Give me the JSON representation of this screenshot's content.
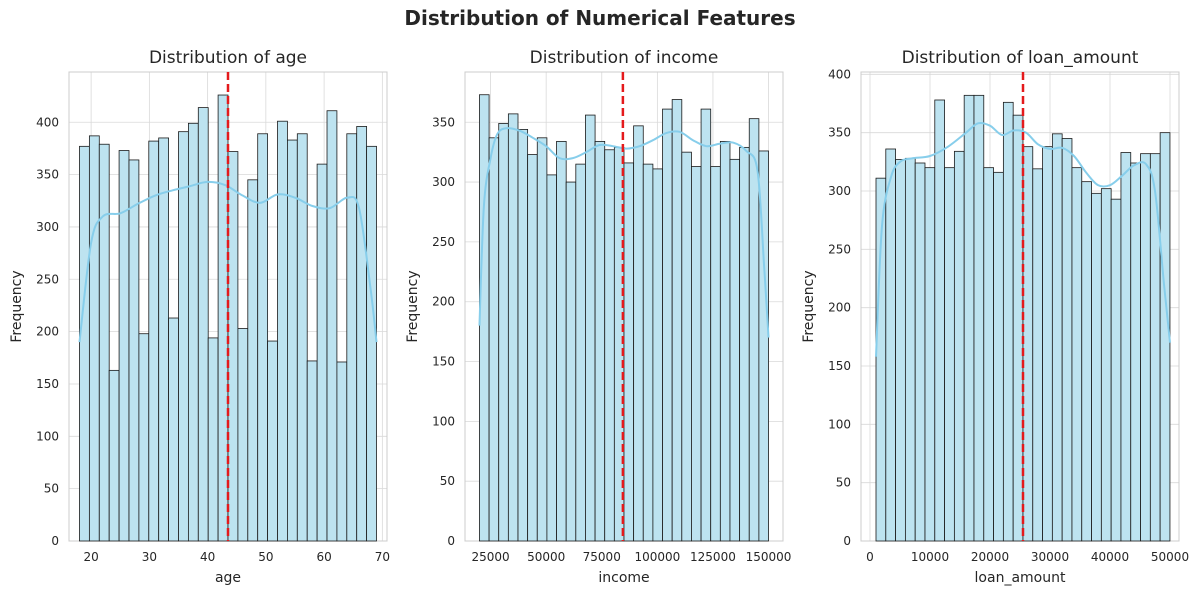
{
  "figure": {
    "title": "Distribution of Numerical Features",
    "colors": {
      "bar_fill": "#bde3f0",
      "bar_edge": "#1a1a1a",
      "kde": "#87ceeb",
      "mean_line": "#e41a1c",
      "grid": "#d9d9d9",
      "axes_edge": "#cccccc",
      "text": "#262626"
    }
  },
  "chart_data": [
    {
      "type": "bar",
      "title": "Distribution of age",
      "xlabel": "age",
      "ylabel": "Frequency",
      "xlim": [
        16.2,
        70.8
      ],
      "ylim": [
        0,
        448
      ],
      "xticks": [
        20,
        30,
        40,
        50,
        60,
        70
      ],
      "xtick_labels": [
        "20",
        "30",
        "40",
        "50",
        "60",
        "70"
      ],
      "yticks": [
        0,
        50,
        100,
        150,
        200,
        250,
        300,
        350,
        400
      ],
      "ytick_labels": [
        "0",
        "50",
        "100",
        "150",
        "200",
        "250",
        "300",
        "350",
        "400"
      ],
      "bin_start": 18,
      "bin_width": 1.7,
      "values": [
        377,
        387,
        379,
        163,
        373,
        364,
        198,
        382,
        385,
        213,
        391,
        399,
        414,
        194,
        426,
        372,
        203,
        345,
        389,
        191,
        401,
        383,
        389,
        172,
        360,
        411,
        171,
        389,
        396,
        377
      ],
      "kde": {
        "x": [
          18,
          20,
          22,
          25,
          28,
          31,
          34,
          37,
          40,
          43,
          46,
          49,
          52,
          55,
          58,
          61,
          64,
          66,
          68,
          69
        ],
        "y": [
          190,
          285,
          310,
          313,
          322,
          330,
          335,
          339,
          343,
          340,
          330,
          323,
          331,
          328,
          320,
          318,
          328,
          318,
          240,
          190
        ]
      },
      "mean_line": 43.5,
      "grid": true,
      "legend": "none"
    },
    {
      "type": "bar",
      "title": "Distribution of income",
      "xlabel": "income",
      "ylabel": "Frequency",
      "xlim": [
        13500,
        156500
      ],
      "ylim": [
        0,
        392
      ],
      "xticks": [
        25000,
        50000,
        75000,
        100000,
        125000,
        150000
      ],
      "xtick_labels": [
        "25000",
        "50000",
        "75000",
        "100000",
        "125000",
        "150000"
      ],
      "yticks": [
        0,
        50,
        100,
        150,
        200,
        250,
        300,
        350
      ],
      "ytick_labels": [
        "0",
        "50",
        "100",
        "150",
        "200",
        "250",
        "300",
        "350"
      ],
      "bin_start": 20000,
      "bin_width": 4333,
      "values": [
        373,
        337,
        349,
        357,
        344,
        323,
        337,
        306,
        334,
        300,
        315,
        356,
        334,
        327,
        329,
        316,
        347,
        315,
        311,
        361,
        369,
        325,
        313,
        361,
        313,
        334,
        319,
        329,
        353,
        326
      ],
      "kde": {
        "x": [
          20000,
          22000,
          25000,
          28000,
          32000,
          38000,
          44000,
          50000,
          56000,
          62000,
          68000,
          74000,
          80000,
          86000,
          92000,
          98000,
          104000,
          110000,
          116000,
          122000,
          128000,
          134000,
          140000,
          145000,
          148000,
          150000
        ],
        "y": [
          180,
          280,
          320,
          340,
          345,
          343,
          337,
          330,
          320,
          320,
          325,
          331,
          330,
          328,
          330,
          335,
          341,
          342,
          335,
          330,
          332,
          333,
          326,
          310,
          230,
          170
        ]
      },
      "mean_line": 84500,
      "grid": true,
      "legend": "none"
    },
    {
      "type": "bar",
      "title": "Distribution of loan_amount",
      "xlabel": "loan_amount",
      "ylabel": "Frequency",
      "xlim": [
        -1500,
        51500
      ],
      "ylim": [
        0,
        402
      ],
      "xticks": [
        0,
        10000,
        20000,
        30000,
        40000,
        50000
      ],
      "xtick_labels": [
        "0",
        "10000",
        "20000",
        "30000",
        "40000",
        "50000"
      ],
      "yticks": [
        0,
        50,
        100,
        150,
        200,
        250,
        300,
        350,
        400
      ],
      "ytick_labels": [
        "0",
        "50",
        "100",
        "150",
        "200",
        "250",
        "300",
        "350",
        "400"
      ],
      "bin_start": 1000,
      "bin_width": 1633,
      "values": [
        311,
        336,
        327,
        328,
        324,
        320,
        378,
        320,
        334,
        382,
        382,
        320,
        316,
        376,
        365,
        338,
        319,
        338,
        349,
        345,
        320,
        308,
        298,
        302,
        293,
        333,
        324,
        332,
        332,
        350
      ],
      "kde": {
        "x": [
          1000,
          2000,
          3500,
          5000,
          7000,
          10000,
          13000,
          16000,
          18000,
          20000,
          22000,
          24000,
          26000,
          28000,
          30000,
          32000,
          34000,
          36000,
          38000,
          40000,
          42000,
          44000,
          46000,
          47500,
          49000,
          50000
        ],
        "y": [
          158,
          270,
          312,
          325,
          328,
          330,
          338,
          350,
          358,
          356,
          348,
          352,
          350,
          340,
          336,
          337,
          330,
          316,
          305,
          305,
          313,
          322,
          323,
          300,
          220,
          170
        ]
      },
      "mean_line": 25500,
      "grid": true,
      "legend": "none"
    }
  ]
}
